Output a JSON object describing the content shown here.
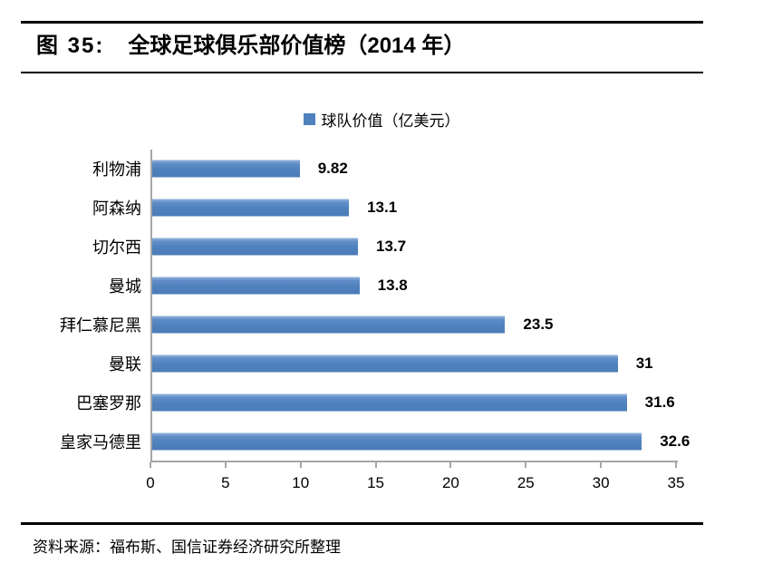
{
  "header": {
    "figure_label": "图 35:",
    "title": "全球足球俱乐部价值榜（2014 年）"
  },
  "chart_data": {
    "type": "bar",
    "orientation": "horizontal",
    "title": "全球足球俱乐部价值榜（2014 年）",
    "legend": "球队价值（亿美元）",
    "legend_position": "top-center",
    "categories": [
      "利物浦",
      "阿森纳",
      "切尔西",
      "曼城",
      "拜仁慕尼黑",
      "曼联",
      "巴塞罗那",
      "皇家马德里"
    ],
    "values": [
      9.82,
      13.1,
      13.7,
      13.8,
      23.5,
      31,
      31.6,
      32.6
    ],
    "value_labels": [
      "9.82",
      "13.1",
      "13.7",
      "13.8",
      "23.5",
      "31",
      "31.6",
      "32.6"
    ],
    "xlabel": "",
    "ylabel": "",
    "xlim": [
      0,
      35
    ],
    "x_ticks": [
      0,
      5,
      10,
      15,
      20,
      25,
      30,
      35
    ],
    "grid": false
  },
  "footer": {
    "source": "资料来源：福布斯、国信证券经济研究所整理"
  },
  "colors": {
    "bar": "#4F81BD",
    "axis": "#A6A6A6",
    "rule": "#000000",
    "text": "#000000"
  }
}
